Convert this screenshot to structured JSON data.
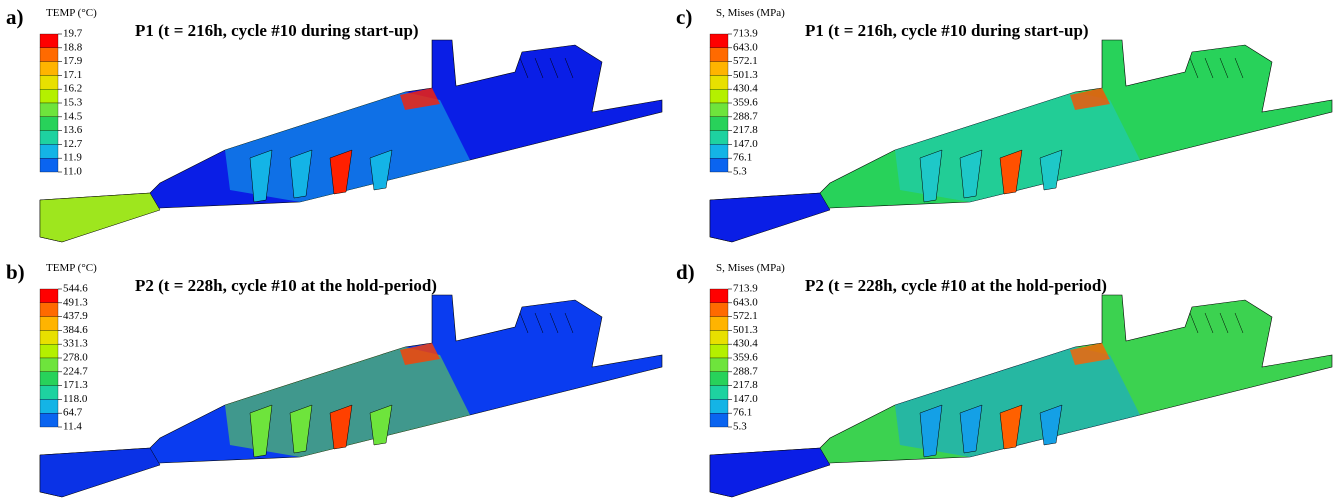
{
  "panels": [
    {
      "label": "a)",
      "legend_title": "TEMP (°C)",
      "title": "P1 (t = 216h, cycle #10 during start-up)",
      "legend_ticks": [
        "19.7",
        "18.8",
        "17.9",
        "17.1",
        "16.2",
        "15.3",
        "14.5",
        "13.6",
        "12.7",
        "11.9",
        "11.0"
      ]
    },
    {
      "label": "b)",
      "legend_title": "TEMP (°C)",
      "title": "P2 (t = 228h, cycle #10 at the hold-period)",
      "legend_ticks": [
        "544.6",
        "491.3",
        "437.9",
        "384.6",
        "331.3",
        "278.0",
        "224.7",
        "171.3",
        "118.0",
        "64.7",
        "11.4"
      ]
    },
    {
      "label": "c)",
      "legend_title": "S, Mises (MPa)",
      "title": "P1 (t = 216h, cycle #10 during start-up)",
      "legend_ticks": [
        "713.9",
        "643.0",
        "572.1",
        "501.3",
        "430.4",
        "359.6",
        "288.7",
        "217.8",
        "147.0",
        "76.1",
        "5.3"
      ]
    },
    {
      "label": "d)",
      "legend_title": "S, Mises (MPa)",
      "title": "P2 (t = 228h, cycle #10 at the hold-period)",
      "legend_ticks": [
        "713.9",
        "643.0",
        "572.1",
        "501.3",
        "430.4",
        "359.6",
        "288.7",
        "217.8",
        "147.0",
        "76.1",
        "5.3"
      ]
    }
  ]
}
